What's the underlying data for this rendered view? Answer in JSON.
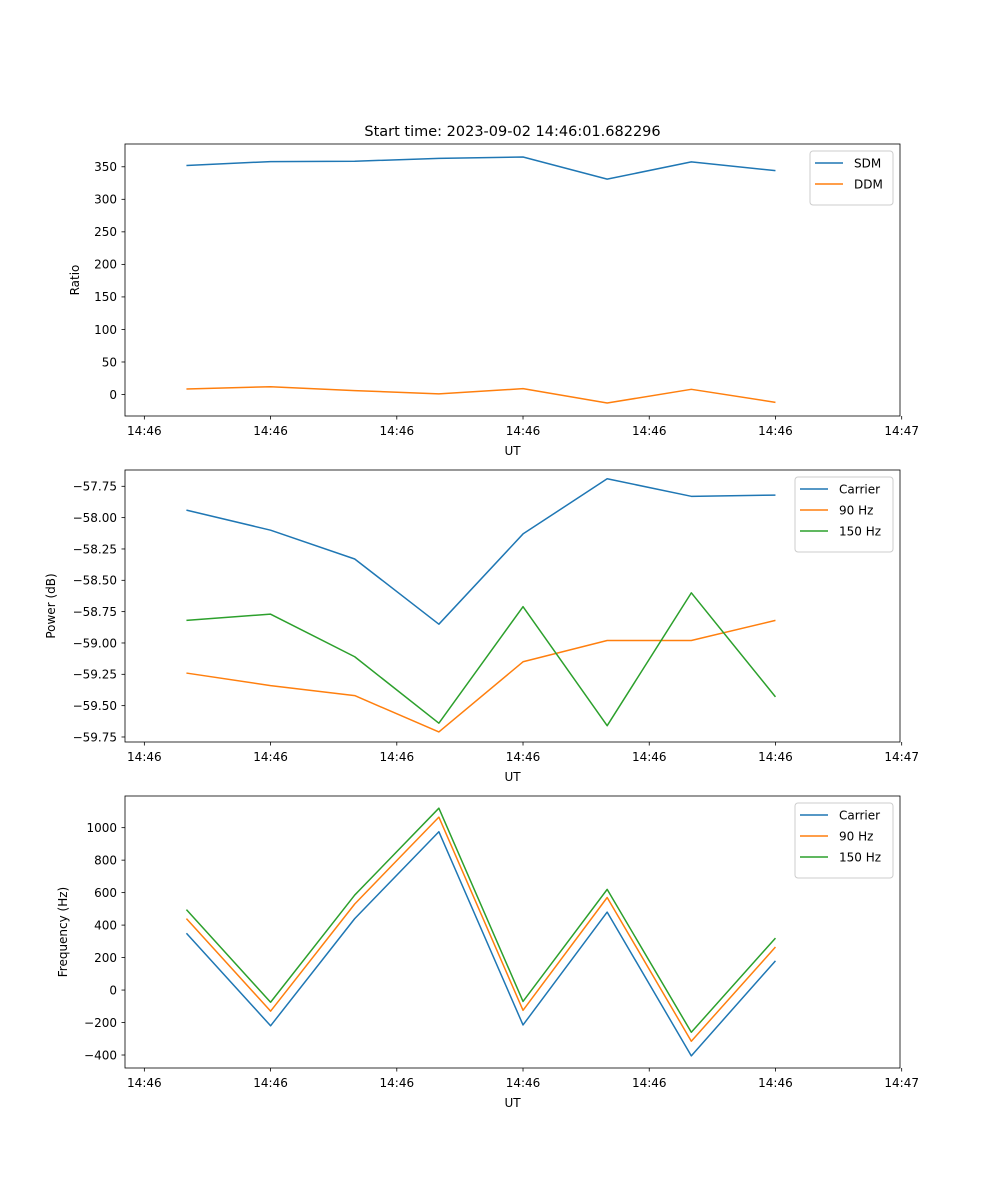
{
  "figure_title": "Start time: 2023-09-02 14:46:01.682296",
  "colors": {
    "blue": "#1f77b4",
    "orange": "#ff7f0e",
    "green": "#2ca02c"
  },
  "chart_data": [
    {
      "type": "line",
      "id": "ratio",
      "title": "Start time: 2023-09-02 14:46:01.682296",
      "xlabel": "UT",
      "ylabel": "Ratio",
      "x": [
        1,
        2,
        3,
        4,
        5,
        6,
        7,
        8
      ],
      "xlim": [
        0.27,
        9.48
      ],
      "xticks": [
        0.5,
        2,
        3.5,
        5,
        6.5,
        8,
        9.5
      ],
      "xtick_labels": [
        "14:46",
        "14:46",
        "14:46",
        "14:46",
        "14:46",
        "14:46",
        "14:47"
      ],
      "ylim": [
        -33,
        385
      ],
      "yticks": [
        0,
        50,
        100,
        150,
        200,
        250,
        300,
        350
      ],
      "yticks_labels": [
        "0",
        "50",
        "100",
        "150",
        "200",
        "250",
        "300",
        "350"
      ],
      "legend": "top-right",
      "series": [
        {
          "name": "SDM",
          "color": "#1f77b4",
          "values": [
            352,
            358,
            358.5,
            363,
            365,
            331,
            357.5,
            344
          ]
        },
        {
          "name": "DDM",
          "color": "#ff7f0e",
          "values": [
            8.5,
            12,
            6,
            1,
            9,
            -13,
            8,
            -12
          ]
        }
      ]
    },
    {
      "type": "line",
      "id": "power",
      "title": "",
      "xlabel": "UT",
      "ylabel": "Power (dB)",
      "x": [
        1,
        2,
        3,
        4,
        5,
        6,
        7,
        8
      ],
      "xlim": [
        0.27,
        9.48
      ],
      "xticks": [
        0.5,
        2,
        3.5,
        5,
        6.5,
        8,
        9.5
      ],
      "xtick_labels": [
        "14:46",
        "14:46",
        "14:46",
        "14:46",
        "14:46",
        "14:46",
        "14:47"
      ],
      "ylim": [
        -59.79,
        -57.62
      ],
      "yticks": [
        -59.75,
        -59.5,
        -59.25,
        -59.0,
        -58.75,
        -58.5,
        -58.25,
        -58.0,
        -57.75
      ],
      "yticks_labels": [
        "−59.75",
        "−59.50",
        "−59.25",
        "−59.00",
        "−58.75",
        "−58.50",
        "−58.25",
        "−58.00",
        "−57.75"
      ],
      "legend": "top-right",
      "series": [
        {
          "name": "Carrier",
          "color": "#1f77b4",
          "values": [
            -57.94,
            -58.1,
            -58.33,
            -58.85,
            -58.13,
            -57.69,
            -57.83,
            -57.82
          ]
        },
        {
          "name": "90 Hz",
          "color": "#ff7f0e",
          "values": [
            -59.24,
            -59.34,
            -59.42,
            -59.71,
            -59.15,
            -58.98,
            -58.98,
            -58.82
          ]
        },
        {
          "name": "150 Hz",
          "color": "#2ca02c",
          "values": [
            -58.82,
            -58.77,
            -59.11,
            -59.64,
            -58.71,
            -59.66,
            -58.6,
            -59.43
          ]
        }
      ]
    },
    {
      "type": "line",
      "id": "frequency",
      "title": "",
      "xlabel": "UT",
      "ylabel": "Frequency (Hz)",
      "x": [
        1,
        2,
        3,
        4,
        5,
        6,
        7,
        8
      ],
      "xlim": [
        0.27,
        9.48
      ],
      "xticks": [
        0.5,
        2,
        3.5,
        5,
        6.5,
        8,
        9.5
      ],
      "xtick_labels": [
        "14:46",
        "14:46",
        "14:46",
        "14:46",
        "14:46",
        "14:46",
        "14:47"
      ],
      "ylim": [
        -480,
        1195
      ],
      "yticks": [
        -400,
        -200,
        0,
        200,
        400,
        600,
        800,
        1000
      ],
      "yticks_labels": [
        "−400",
        "−200",
        "0",
        "200",
        "400",
        "600",
        "800",
        "1000"
      ],
      "legend": "top-right",
      "series": [
        {
          "name": "Carrier",
          "color": "#1f77b4",
          "values": [
            350,
            -220,
            440,
            975,
            -215,
            480,
            -405,
            180
          ]
        },
        {
          "name": "90 Hz",
          "color": "#ff7f0e",
          "values": [
            440,
            -130,
            530,
            1065,
            -125,
            570,
            -315,
            265
          ]
        },
        {
          "name": "150 Hz",
          "color": "#2ca02c",
          "values": [
            495,
            -75,
            585,
            1120,
            -70,
            620,
            -260,
            320
          ]
        }
      ]
    }
  ]
}
